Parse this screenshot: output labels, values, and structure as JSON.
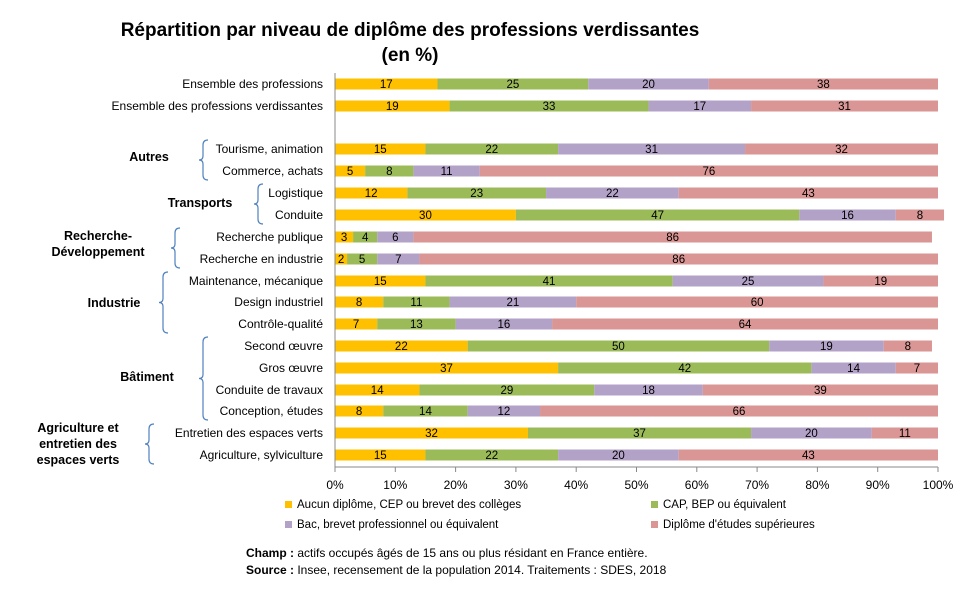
{
  "chart_data": {
    "type": "bar",
    "orientation": "horizontal-stacked-percent",
    "title": "Répartition par niveau de diplôme des professions verdissantes",
    "subtitle": "(en %)",
    "xlim": [
      0,
      100
    ],
    "x_ticks": [
      "0%",
      "10%",
      "20%",
      "30%",
      "40%",
      "50%",
      "60%",
      "70%",
      "80%",
      "90%",
      "100%"
    ],
    "series": [
      {
        "name": "Aucun diplôme, CEP ou brevet des collèges",
        "color": "#FFC000"
      },
      {
        "name": "CAP, BEP ou équivalent",
        "color": "#9BBB59"
      },
      {
        "name": "Bac, brevet professionnel ou équivalent",
        "color": "#B3A2C7"
      },
      {
        "name": "Diplôme d'études supérieures",
        "color": "#D99694"
      }
    ],
    "rows": [
      {
        "label": "Ensemble des professions",
        "values": [
          17,
          25,
          20,
          38
        ]
      },
      {
        "label": "Ensemble des professions verdissantes",
        "values": [
          19,
          33,
          17,
          31
        ]
      },
      {
        "label": "Tourisme, animation",
        "values": [
          15,
          22,
          31,
          32
        ]
      },
      {
        "label": "Commerce, achats",
        "values": [
          5,
          8,
          11,
          76
        ]
      },
      {
        "label": "Logistique",
        "values": [
          12,
          23,
          22,
          43
        ]
      },
      {
        "label": "Conduite",
        "values": [
          30,
          47,
          16,
          8
        ]
      },
      {
        "label": "Recherche publique",
        "values": [
          3,
          4,
          6,
          86
        ]
      },
      {
        "label": "Recherche en industrie",
        "values": [
          2,
          5,
          7,
          86
        ]
      },
      {
        "label": "Maintenance, mécanique",
        "values": [
          15,
          41,
          25,
          19
        ]
      },
      {
        "label": "Design industriel",
        "values": [
          8,
          11,
          21,
          60
        ]
      },
      {
        "label": "Contrôle-qualité",
        "values": [
          7,
          13,
          16,
          64
        ]
      },
      {
        "label": "Second œuvre",
        "values": [
          22,
          50,
          19,
          8
        ]
      },
      {
        "label": "Gros œuvre",
        "values": [
          37,
          42,
          14,
          7
        ]
      },
      {
        "label": "Conduite de travaux",
        "values": [
          14,
          29,
          18,
          39
        ]
      },
      {
        "label": "Conception, études",
        "values": [
          8,
          14,
          12,
          66
        ]
      },
      {
        "label": "Entretien des espaces verts",
        "values": [
          32,
          37,
          20,
          11
        ]
      },
      {
        "label": "Agriculture, sylviculture",
        "values": [
          15,
          22,
          20,
          43
        ]
      }
    ],
    "groups": [
      {
        "label": "Autres",
        "rows": [
          2,
          3
        ]
      },
      {
        "label": "Transports",
        "rows": [
          4,
          5
        ]
      },
      {
        "label": "Recherche-\nDéveloppement",
        "rows": [
          6,
          7
        ]
      },
      {
        "label": "Industrie",
        "rows": [
          8,
          10
        ]
      },
      {
        "label": "Bâtiment",
        "rows": [
          11,
          14
        ]
      },
      {
        "label": "Agriculture et\nentretien des\nespaces verts",
        "rows": [
          15,
          16
        ]
      }
    ],
    "legend_position": "bottom",
    "grid": false
  },
  "footer": {
    "champ_label": "Champ :",
    "champ_text": " actifs occupés âgés de 15 ans ou plus résidant en France entière.",
    "source_label": "Source :",
    "source_text": " Insee, recensement de la population 2014. Traitements : SDES, 2018"
  }
}
